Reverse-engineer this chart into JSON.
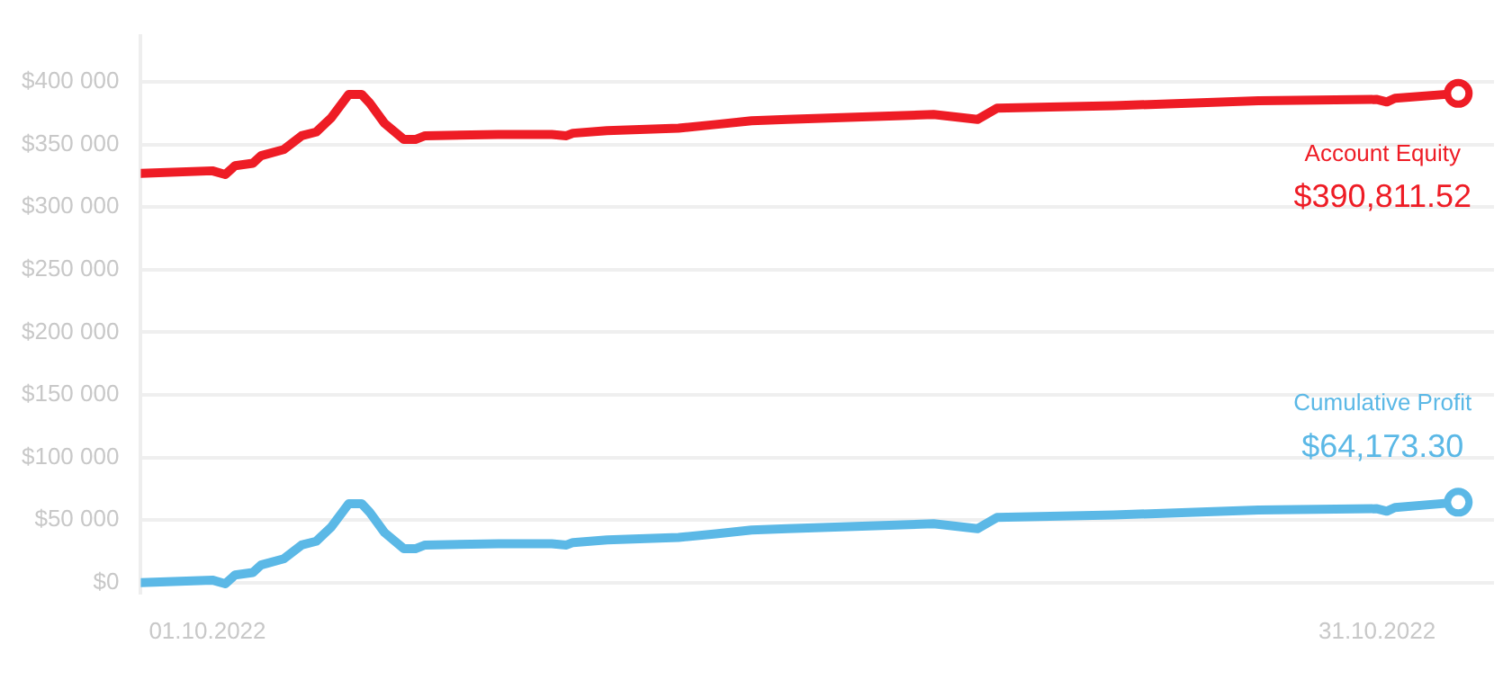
{
  "chart_data": {
    "type": "line",
    "x": [
      "2022-09-29T07:00",
      "2022-10-01T03:00",
      "2022-10-01T11:00",
      "2022-10-01T17:00",
      "2022-10-02T04:00",
      "2022-10-02T09:00",
      "2022-10-02T23:00",
      "2022-10-03T10:00",
      "2022-10-03T19:00",
      "2022-10-04T04:00",
      "2022-10-04T15:00",
      "2022-10-04T23:00",
      "2022-10-05T04:00",
      "2022-10-05T13:00",
      "2022-10-06T01:00",
      "2022-10-06T08:00",
      "2022-10-06T14:00",
      "2022-10-08T11:00",
      "2022-10-09T20:00",
      "2022-10-10T05:00",
      "2022-10-10T09:00",
      "2022-10-11T06:00",
      "2022-10-13T02:00",
      "2022-10-14T01:00",
      "2022-10-14T23:00",
      "2022-10-15T21:00",
      "2022-10-19T15:00",
      "2022-10-20T18:00",
      "2022-10-21T06:00",
      "2022-10-24T06:00",
      "2022-10-27T23:00",
      "2022-10-31T00:00",
      "2022-10-31T06:00",
      "2022-10-31T11:00",
      "2022-11-02T02:00"
    ],
    "series": [
      {
        "name": "Account Equity",
        "color": "#ee1c25",
        "values": [
          327000,
          329000,
          326000,
          333000,
          335000,
          341000,
          346000,
          357000,
          360000,
          371000,
          390000,
          390000,
          383000,
          367000,
          354000,
          354000,
          357000,
          358000,
          358000,
          357000,
          359000,
          361000,
          363000,
          366000,
          369000,
          370000,
          374000,
          370000,
          379000,
          381000,
          385000,
          386000,
          384000,
          387000,
          390811.52
        ],
        "value_labels": [
          null,
          null,
          null,
          null,
          null,
          null,
          null,
          null,
          null,
          null,
          null,
          null,
          null,
          null,
          null,
          null,
          null,
          null,
          null,
          null,
          null,
          null,
          null,
          null,
          null,
          null,
          null,
          null,
          null,
          null,
          null,
          null,
          null,
          null,
          "$390,811.52"
        ]
      },
      {
        "name": "Cumulative Profit",
        "color": "#5bb8e6",
        "values": [
          0,
          2000,
          -1000,
          6000,
          8000,
          14000,
          19000,
          30000,
          33000,
          44000,
          63000,
          63000,
          56000,
          40000,
          27000,
          27000,
          30000,
          31000,
          31000,
          30000,
          32000,
          34000,
          36000,
          39000,
          42000,
          43000,
          47000,
          43000,
          52000,
          54000,
          58000,
          59000,
          57000,
          60000,
          64173.3
        ],
        "value_labels": [
          null,
          null,
          null,
          null,
          null,
          null,
          null,
          null,
          null,
          null,
          null,
          null,
          null,
          null,
          null,
          null,
          null,
          null,
          null,
          null,
          null,
          null,
          null,
          null,
          null,
          null,
          null,
          null,
          null,
          null,
          null,
          null,
          null,
          null,
          "$64,173.30"
        ]
      }
    ],
    "xlim": [
      "2022-09-29T07:00",
      "2022-11-03T00:00"
    ],
    "xticks": [
      {
        "value": "2022-10-01",
        "label": "01.10.2022"
      },
      {
        "value": "2022-10-31",
        "label": "31.10.2022"
      }
    ],
    "ylim": [
      -8000,
      437000
    ],
    "yticks": [
      {
        "value": 0,
        "label": "$0"
      },
      {
        "value": 50000,
        "label": "$50 000"
      },
      {
        "value": 100000,
        "label": "$100 000"
      },
      {
        "value": 150000,
        "label": "$150 000"
      },
      {
        "value": 200000,
        "label": "$200 000"
      },
      {
        "value": 250000,
        "label": "$250 000"
      },
      {
        "value": 300000,
        "label": "$300 000"
      },
      {
        "value": 350000,
        "label": "$350 000"
      },
      {
        "value": 400000,
        "label": "$400 000"
      }
    ],
    "grid": "y",
    "legend": false
  }
}
